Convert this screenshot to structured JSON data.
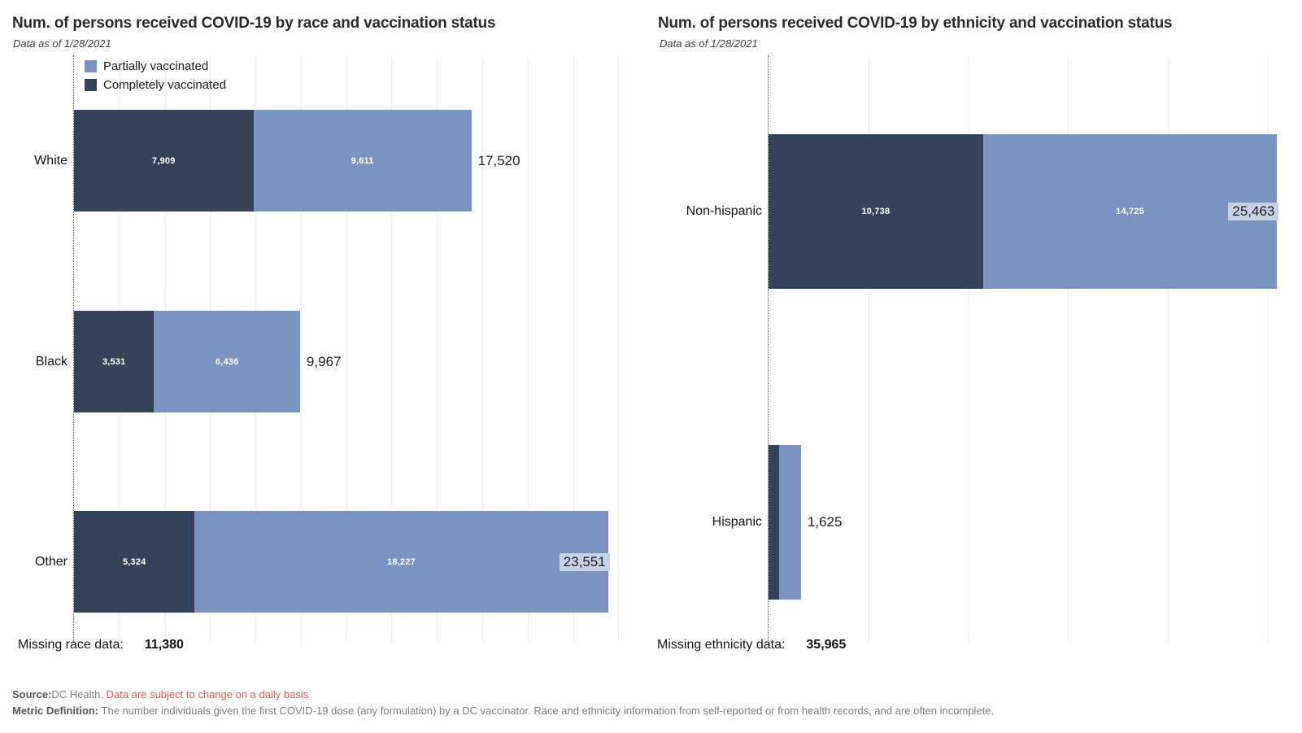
{
  "colors": {
    "partially": "#7b93c1",
    "completely": "#36415a",
    "total_inside_bg": "#c8d1e3",
    "gridline": "#eeeeee",
    "warning_red": "#e05c5c",
    "footer_gray": "#7f7f7f",
    "footer_dark_gray": "#595959"
  },
  "legend": {
    "items": [
      {
        "key": "partially",
        "label": "Partially vaccinated"
      },
      {
        "key": "completely",
        "label": "Completely vaccinated"
      }
    ]
  },
  "chart_data": [
    {
      "type": "stacked-bar-horizontal",
      "title": "Num. of persons received COVID-19 by race and vaccination status",
      "subtitle": "Data as of 1/28/2021",
      "legend_position": "top-left-inside",
      "grid": true,
      "xlim": [
        0,
        24600
      ],
      "grid_interval": 2000,
      "series_order": [
        "completely",
        "partially"
      ],
      "rows": [
        {
          "category": "White",
          "completely": 7909,
          "partially": 9611,
          "total": 17520,
          "completely_label": "7,909",
          "partially_label": "9,611",
          "total_label": "17,520",
          "total_inside": false
        },
        {
          "category": "Black",
          "completely": 3531,
          "partially": 6436,
          "total": 9967,
          "completely_label": "3,531",
          "partially_label": "6,436",
          "total_label": "9,967",
          "total_inside": false
        },
        {
          "category": "Other",
          "completely": 5324,
          "partially": 18227,
          "total": 23551,
          "completely_label": "5,324",
          "partially_label": "18,227",
          "total_label": "23,551",
          "total_inside": true
        }
      ],
      "missing": {
        "label": "Missing race data:",
        "value": "11,380"
      }
    },
    {
      "type": "stacked-bar-horizontal",
      "title": "Num. of persons received COVID-19 by ethnicity and vaccination status",
      "subtitle": "Data as of 1/28/2021",
      "legend_position": "none",
      "grid": true,
      "xlim": [
        0,
        26300
      ],
      "grid_interval": 5000,
      "series_order": [
        "completely",
        "partially"
      ],
      "rows": [
        {
          "category": "Non-hispanic",
          "completely": 10738,
          "partially": 14725,
          "total": 25463,
          "completely_label": "10,738",
          "partially_label": "14,725",
          "total_label": "25,463",
          "total_inside": true
        },
        {
          "category": "Hispanic",
          "completely": 530,
          "partially": 1095,
          "total": 1625,
          "completely_label": "",
          "partially_label": "",
          "total_label": "1,625",
          "total_inside": false
        }
      ],
      "missing": {
        "label": "Missing ethnicity data:",
        "value": "35,965"
      }
    }
  ],
  "footer": {
    "source_label": "Source:",
    "source_text": "DC Health. ",
    "source_warning": "Data are subject to change on a daily basis",
    "metric_label": "Metric Definition:",
    "metric_text": " The number individuals given the first COVID-19 dose (any formulation) by a DC vaccinator. Race and ethnicity information from self-reported or from health records, and are often incomplete."
  }
}
